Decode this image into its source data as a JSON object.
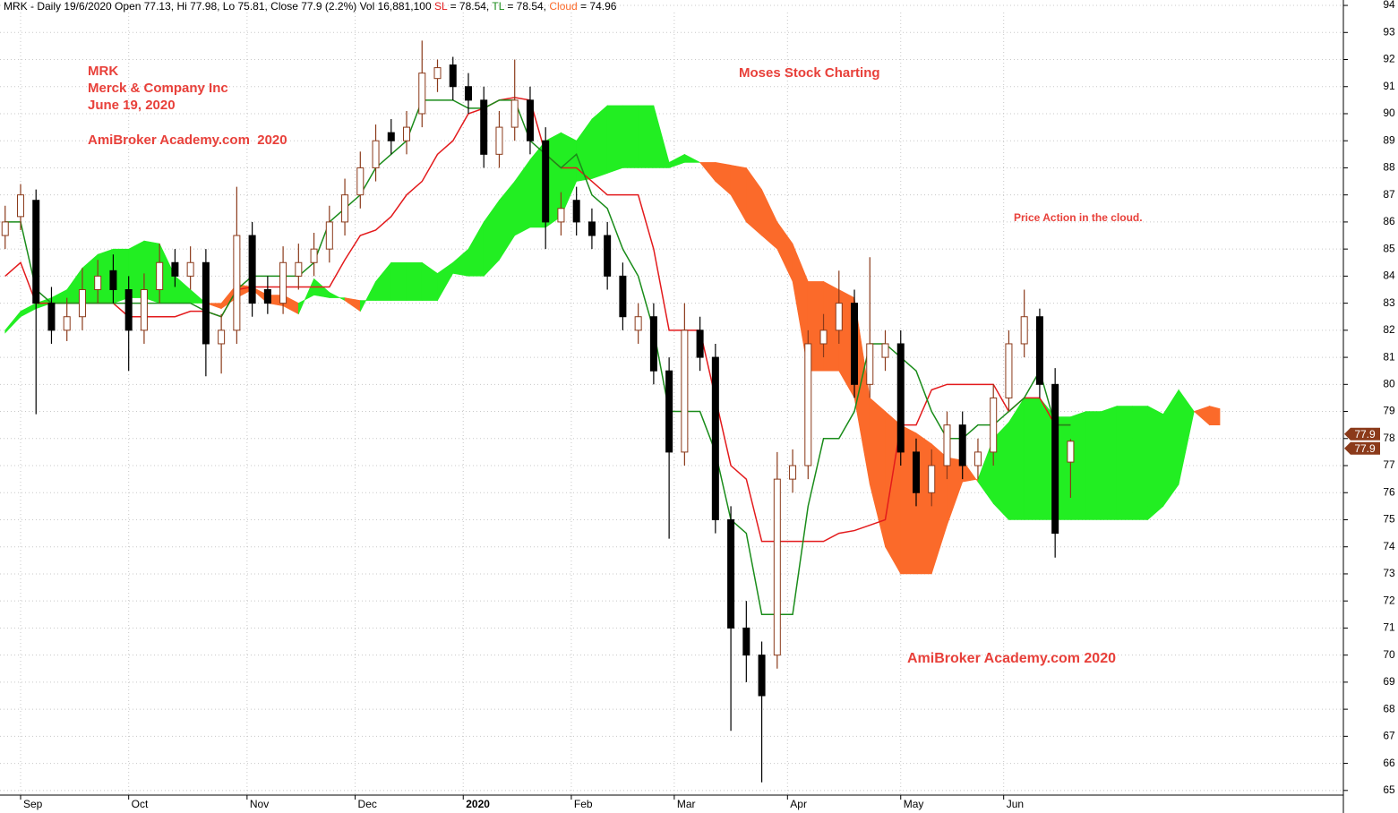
{
  "chart_data": {
    "type": "candlestick",
    "header": {
      "title": "MRK - Daily 19/6/2020 Open 77.13, Hi 77.98, Lo 75.81, Close 77.9 (2.2%) Vol 16,881,100",
      "sl_value": "= 78.54,",
      "tl_value": "= 78.54,",
      "cloud_value": "= 74.96"
    },
    "annotations": [
      "MRK",
      "Merck & Company Inc",
      "June 19, 2020",
      "AmiBroker Academy.com  2020",
      "Moses Stock Charting",
      "Price Action in the cloud.",
      "AmiBroker Academy.com 2020"
    ],
    "x": [
      0,
      3,
      6,
      9,
      12,
      15,
      18,
      21,
      24,
      27,
      30,
      33,
      36,
      39,
      42,
      45,
      48,
      51,
      54,
      57,
      60,
      63,
      66,
      69,
      72,
      75,
      78,
      81,
      84,
      87,
      90,
      93,
      96,
      99,
      102,
      105,
      108,
      111,
      114,
      117,
      120,
      123,
      126,
      129,
      132,
      135,
      138,
      141,
      144,
      147,
      150,
      153,
      156,
      159,
      162,
      165,
      168,
      171,
      174,
      177,
      180,
      183,
      186,
      189,
      192,
      195,
      198,
      201,
      204,
      207
    ],
    "open": [
      85.5,
      86.2,
      86.8,
      83.0,
      82.0,
      82.5,
      83.5,
      84.2,
      83.5,
      82.0,
      83.5,
      84.5,
      84.0,
      84.5,
      81.5,
      82.0,
      85.5,
      83.5,
      83.0,
      84.0,
      84.5,
      85.0,
      86.0,
      87.0,
      88.0,
      89.3,
      89.0,
      90.0,
      91.3,
      91.8,
      91.0,
      90.5,
      88.5,
      89.5,
      90.5,
      89.0,
      86.0,
      86.8,
      86.0,
      85.5,
      84.0,
      82.0,
      82.5,
      80.5,
      77.5,
      82.0,
      81.0,
      75.0,
      71.0,
      70.0,
      70.0,
      76.5,
      77.0,
      81.5,
      82.0,
      83.0,
      80.0,
      81.0,
      81.5,
      77.5,
      76.0,
      77.0,
      78.5,
      77.0,
      77.5,
      79.5,
      81.5,
      82.5,
      80.0,
      77.13
    ],
    "high": [
      86.6,
      87.4,
      87.2,
      83.6,
      83.2,
      84.3,
      84.6,
      84.8,
      84.0,
      84.1,
      85.2,
      85.0,
      85.1,
      85.0,
      82.6,
      87.3,
      86.0,
      84.0,
      85.1,
      85.2,
      85.6,
      86.6,
      87.6,
      88.6,
      89.6,
      89.8,
      90.1,
      92.7,
      92.0,
      92.1,
      91.5,
      91.0,
      90.1,
      92.0,
      91.0,
      89.5,
      87.1,
      87.3,
      86.5,
      86.0,
      84.5,
      83.0,
      83.0,
      81.0,
      83.0,
      82.5,
      81.5,
      75.5,
      72.0,
      70.5,
      77.5,
      77.6,
      82.0,
      82.6,
      84.2,
      83.5,
      84.7,
      82.0,
      82.0,
      78.0,
      77.6,
      79.0,
      79.0,
      78.0,
      80.0,
      82.0,
      83.5,
      82.8,
      80.6,
      77.98
    ],
    "low": [
      85.0,
      85.7,
      78.9,
      81.5,
      81.6,
      82.0,
      83.0,
      83.0,
      80.5,
      81.5,
      83.0,
      83.6,
      83.5,
      80.3,
      80.4,
      81.5,
      82.5,
      82.6,
      82.6,
      83.5,
      84.0,
      84.5,
      85.5,
      86.5,
      87.5,
      88.5,
      88.5,
      89.5,
      90.8,
      90.5,
      90.0,
      88.0,
      88.0,
      89.0,
      88.5,
      85.0,
      85.5,
      85.5,
      85.0,
      83.5,
      82.0,
      81.5,
      80.0,
      74.3,
      77.0,
      80.5,
      74.5,
      67.2,
      69.0,
      65.3,
      69.5,
      76.0,
      76.5,
      81.0,
      81.5,
      79.5,
      79.5,
      80.5,
      77.0,
      75.5,
      75.5,
      76.5,
      76.5,
      76.5,
      77.0,
      79.0,
      81.0,
      79.5,
      73.6,
      75.81
    ],
    "close": [
      86.0,
      87.0,
      83.0,
      82.0,
      82.5,
      83.5,
      84.0,
      83.5,
      82.0,
      83.5,
      84.5,
      84.0,
      84.5,
      81.5,
      82.0,
      85.5,
      83.0,
      83.0,
      84.5,
      84.5,
      85.0,
      86.0,
      87.0,
      88.0,
      89.0,
      89.0,
      89.5,
      91.5,
      91.7,
      91.0,
      90.5,
      88.5,
      89.5,
      90.5,
      89.0,
      86.0,
      86.5,
      86.0,
      85.5,
      84.0,
      82.5,
      82.5,
      80.5,
      77.5,
      82.0,
      81.0,
      75.0,
      71.0,
      70.0,
      68.5,
      76.5,
      77.0,
      81.5,
      82.0,
      83.0,
      80.0,
      81.5,
      81.5,
      77.5,
      76.0,
      77.0,
      78.5,
      77.0,
      77.5,
      79.5,
      81.5,
      82.5,
      80.0,
      74.5,
      77.9
    ],
    "up_color": "#8b3a1a",
    "down_color": "#000000",
    "series": [
      {
        "name": "SL",
        "color": "#e31a1c",
        "values": [
          84.0,
          84.5,
          83.0,
          83.0,
          83.0,
          83.0,
          83.0,
          83.0,
          82.5,
          82.5,
          82.5,
          82.5,
          82.7,
          82.7,
          82.5,
          83.5,
          83.6,
          83.6,
          83.6,
          83.6,
          83.6,
          83.6,
          84.6,
          85.5,
          85.7,
          86.2,
          87.0,
          87.5,
          88.5,
          89.0,
          90.0,
          90.2,
          90.5,
          90.6,
          90.5,
          88.5,
          88.0,
          88.0,
          87.5,
          87.0,
          87.0,
          87.0,
          85.0,
          82.0,
          82.0,
          82.0,
          79.5,
          77.0,
          76.5,
          74.2,
          74.2,
          74.2,
          74.2,
          74.2,
          74.5,
          74.6,
          74.8,
          75.0,
          78.5,
          78.5,
          79.8,
          80.0,
          80.0,
          80.0,
          80.0,
          79.0,
          79.5,
          79.5,
          78.5,
          78.5
        ]
      },
      {
        "name": "TL",
        "color": "#1a8c1a",
        "values": [
          86.0,
          86.0,
          83.5,
          83.0,
          83.0,
          83.0,
          83.0,
          83.0,
          83.0,
          83.0,
          83.0,
          83.0,
          83.0,
          82.7,
          82.5,
          83.5,
          84.0,
          84.0,
          84.0,
          84.0,
          84.5,
          86.0,
          86.5,
          87.0,
          88.0,
          88.5,
          89.0,
          90.5,
          90.5,
          90.5,
          90.2,
          90.2,
          90.5,
          90.5,
          89.0,
          88.5,
          88.0,
          88.5,
          87.0,
          86.5,
          85.0,
          84.0,
          82.0,
          79.0,
          79.0,
          79.0,
          77.5,
          75.0,
          74.5,
          71.5,
          71.5,
          71.5,
          75.5,
          78.0,
          78.0,
          79.0,
          81.5,
          81.5,
          81.0,
          80.5,
          79.0,
          78.0,
          78.0,
          78.5,
          78.5,
          79.0,
          79.5,
          80.5,
          78.5,
          78.5
        ]
      }
    ],
    "cloud": {
      "name": "Cloud",
      "color_up": "#22ee22",
      "color_down": "#fb6a2a",
      "x": [
        0,
        3,
        6,
        9,
        12,
        15,
        18,
        21,
        24,
        27,
        30,
        33,
        36,
        39,
        42,
        45,
        48,
        51,
        54,
        57,
        60,
        63,
        66,
        69,
        72,
        75,
        78,
        81,
        84,
        87,
        90,
        93,
        96,
        99,
        102,
        105,
        108,
        111,
        114,
        117,
        120,
        123,
        126,
        129,
        132,
        135,
        138,
        141,
        144,
        147,
        150,
        153,
        156,
        159,
        162,
        165,
        168,
        171,
        174,
        177,
        180,
        183,
        186,
        189,
        192,
        195,
        198,
        201,
        204,
        207,
        210,
        213,
        216,
        219,
        222,
        225,
        228,
        231,
        234,
        236
      ],
      "span_a": [
        82.0,
        82.7,
        83.0,
        83.2,
        83.5,
        84.3,
        84.8,
        85.0,
        85.0,
        85.3,
        85.2,
        84.0,
        83.5,
        83.0,
        82.8,
        83.2,
        83.5,
        83.0,
        82.9,
        82.6,
        83.9,
        83.4,
        83.1,
        82.7,
        83.8,
        84.5,
        84.5,
        84.5,
        84.1,
        84.5,
        85.0,
        86.0,
        86.8,
        87.5,
        88.3,
        89.0,
        89.3,
        89.0,
        89.8,
        90.3,
        90.3,
        90.3,
        90.3,
        88.2,
        88.5,
        88.2,
        87.5,
        87.0,
        86.0,
        85.5,
        85.0,
        83.8,
        80.5,
        80.5,
        80.5,
        79.5,
        76.3,
        74.0,
        73.0,
        73.0,
        73.0,
        74.8,
        76.4,
        76.5,
        78.0,
        78.6,
        79.5,
        79.5,
        78.8,
        78.8,
        79.0,
        79.0,
        79.2,
        79.2,
        79.2,
        78.9,
        79.8,
        79.0,
        78.5,
        78.5
      ],
      "span_b": [
        81.9,
        82.5,
        82.8,
        83.0,
        83.0,
        83.0,
        83.0,
        83.0,
        83.2,
        83.2,
        83.0,
        83.0,
        83.0,
        83.0,
        83.0,
        83.7,
        83.6,
        83.3,
        83.3,
        83.0,
        83.3,
        83.2,
        83.2,
        83.1,
        83.1,
        83.1,
        83.1,
        83.1,
        83.1,
        84.1,
        84.0,
        84.0,
        84.6,
        85.5,
        85.8,
        85.8,
        86.2,
        87.5,
        87.6,
        87.8,
        88.0,
        88.0,
        88.0,
        88.0,
        88.2,
        88.2,
        88.2,
        88.1,
        88.0,
        87.2,
        86.0,
        85.2,
        83.8,
        83.8,
        83.5,
        83.2,
        79.5,
        79.0,
        78.5,
        78.2,
        77.8,
        77.3,
        77.2,
        76.4,
        75.6,
        75.0,
        75.0,
        75.0,
        75.0,
        75.0,
        75.0,
        75.0,
        75.0,
        75.0,
        75.0,
        75.5,
        76.3,
        79.0,
        79.2,
        79.1
      ]
    },
    "price_tags": [
      77.9,
      77.9
    ],
    "xlim": [
      -1,
      260
    ],
    "xticks": [
      {
        "value": 3,
        "label": "Sep"
      },
      {
        "value": 24,
        "label": "Oct"
      },
      {
        "value": 47,
        "label": "Nov"
      },
      {
        "value": 68,
        "label": "Dec"
      },
      {
        "value": 89,
        "label": "2020"
      },
      {
        "value": 110,
        "label": "Feb"
      },
      {
        "value": 130,
        "label": "Mar"
      },
      {
        "value": 152,
        "label": "Apr"
      },
      {
        "value": 174,
        "label": "May"
      },
      {
        "value": 194,
        "label": "Jun"
      }
    ],
    "ylim": [
      64.2,
      94.2
    ],
    "yticks": [
      65,
      66,
      67,
      68,
      69,
      70,
      71,
      72,
      73,
      74,
      75,
      76,
      77,
      78,
      79,
      80,
      81,
      82,
      83,
      84,
      85,
      86,
      87,
      88,
      89,
      90,
      91,
      92,
      93,
      94
    ],
    "grid": true
  }
}
